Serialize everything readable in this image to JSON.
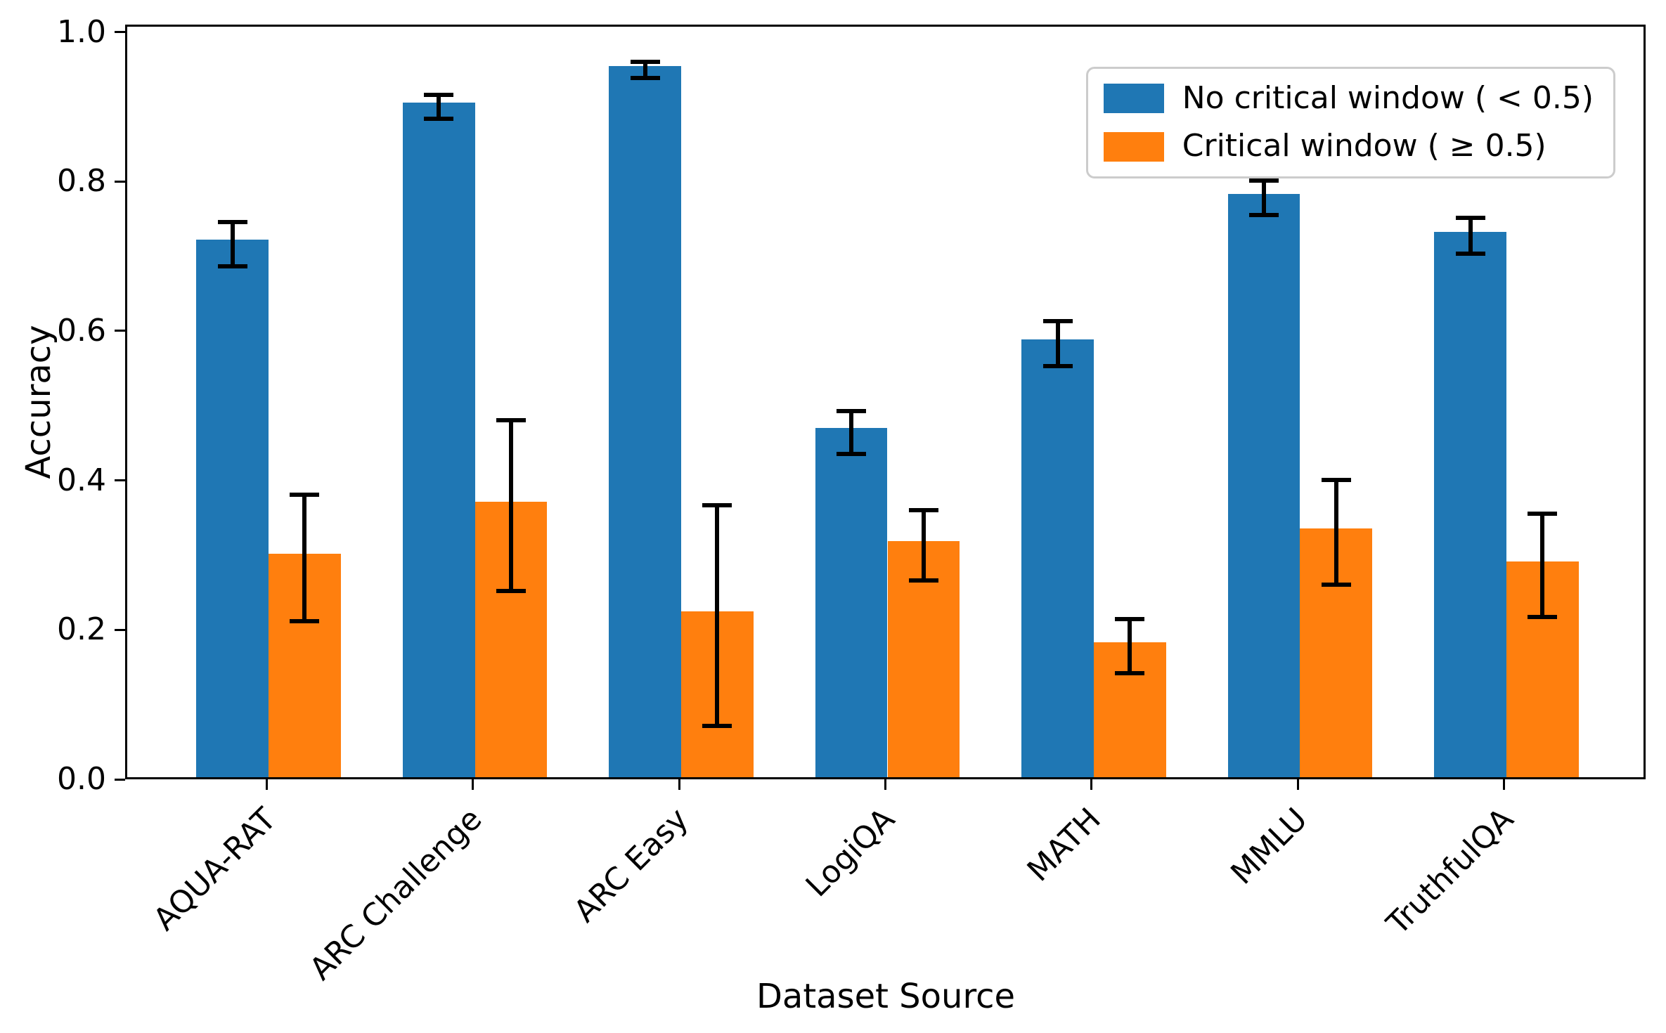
{
  "chart_data": {
    "type": "bar",
    "title": "",
    "xlabel": "Dataset Source",
    "ylabel": "Accuracy",
    "categories": [
      "AQUA-RAT",
      "ARC Challenge",
      "ARC Easy",
      "LogiQA",
      "MATH",
      "MMLU",
      "TruthfulQA"
    ],
    "series": [
      {
        "name": "No critical window ( < 0.5)",
        "color": "#1f77b4",
        "values": [
          0.719,
          0.903,
          0.952,
          0.467,
          0.586,
          0.781,
          0.73
        ],
        "errors": [
          0.03,
          0.016,
          0.011,
          0.029,
          0.03,
          0.023,
          0.024
        ]
      },
      {
        "name": "Critical window ( ≥ 0.5)",
        "color": "#ff7f0e",
        "values": [
          0.299,
          0.369,
          0.222,
          0.316,
          0.181,
          0.333,
          0.289
        ],
        "errors": [
          0.085,
          0.114,
          0.148,
          0.047,
          0.036,
          0.07,
          0.069
        ]
      }
    ],
    "ylim": [
      0.0,
      1.01
    ],
    "yticks": [
      "0.0",
      "0.2",
      "0.4",
      "0.6",
      "0.8",
      "1.0"
    ],
    "grid": false,
    "legend_position": "upper right",
    "error_bar_color": "#000000",
    "axis_color": "#000000",
    "background_color": "#ffffff"
  }
}
